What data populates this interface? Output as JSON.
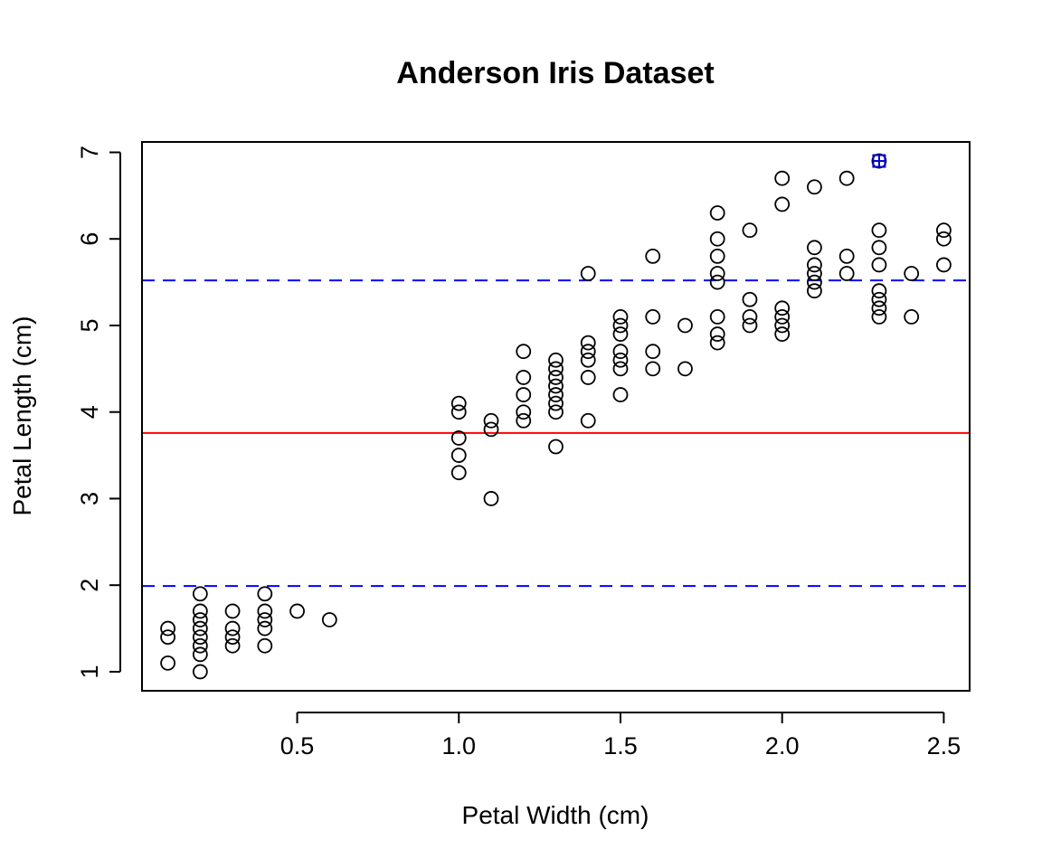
{
  "chart_data": {
    "type": "scatter",
    "title": "Anderson Iris Dataset",
    "xlabel": "Petal Width (cm)",
    "ylabel": "Petal Length (cm)",
    "xlim": [
      0.02,
      2.58
    ],
    "ylim": [
      0.78,
      7.12
    ],
    "x_ticks": [
      0.5,
      1.0,
      1.5,
      2.0,
      2.5
    ],
    "x_tick_labels": [
      "0.5",
      "1.0",
      "1.5",
      "2.0",
      "2.5"
    ],
    "y_ticks": [
      1,
      2,
      3,
      4,
      5,
      6,
      7
    ],
    "y_tick_labels": [
      "1",
      "2",
      "3",
      "4",
      "5",
      "6",
      "7"
    ],
    "grid": false,
    "legend": "none",
    "hlines": [
      {
        "y": 3.758,
        "style": "solid",
        "color": "#ff0000"
      },
      {
        "y": 1.99,
        "style": "dashed",
        "color": "#0000ff"
      },
      {
        "y": 5.52,
        "style": "dashed",
        "color": "#0000ff"
      }
    ],
    "highlight": {
      "x": 2.3,
      "y": 6.9,
      "color": "#0000cc",
      "shape": "square-plus"
    },
    "point_color": "#000000",
    "series": [
      {
        "points": [
          [
            0.1,
            1.5
          ],
          [
            0.1,
            1.4
          ],
          [
            0.1,
            1.1
          ],
          [
            0.2,
            1.9
          ],
          [
            0.2,
            1.7
          ],
          [
            0.2,
            1.6
          ],
          [
            0.2,
            1.5
          ],
          [
            0.2,
            1.4
          ],
          [
            0.2,
            1.3
          ],
          [
            0.2,
            1.2
          ],
          [
            0.2,
            1.0
          ],
          [
            0.3,
            1.7
          ],
          [
            0.3,
            1.5
          ],
          [
            0.3,
            1.4
          ],
          [
            0.3,
            1.3
          ],
          [
            0.4,
            1.9
          ],
          [
            0.4,
            1.7
          ],
          [
            0.4,
            1.6
          ],
          [
            0.4,
            1.5
          ],
          [
            0.4,
            1.3
          ],
          [
            0.5,
            1.7
          ],
          [
            0.6,
            1.6
          ],
          [
            1.0,
            4.1
          ],
          [
            1.0,
            4.0
          ],
          [
            1.0,
            3.7
          ],
          [
            1.0,
            3.5
          ],
          [
            1.0,
            3.3
          ],
          [
            1.1,
            3.9
          ],
          [
            1.1,
            3.8
          ],
          [
            1.1,
            3.0
          ],
          [
            1.2,
            4.7
          ],
          [
            1.2,
            4.4
          ],
          [
            1.2,
            4.2
          ],
          [
            1.2,
            4.0
          ],
          [
            1.2,
            3.9
          ],
          [
            1.3,
            4.6
          ],
          [
            1.3,
            4.5
          ],
          [
            1.3,
            4.4
          ],
          [
            1.3,
            4.3
          ],
          [
            1.3,
            4.2
          ],
          [
            1.3,
            4.1
          ],
          [
            1.3,
            4.0
          ],
          [
            1.3,
            3.6
          ],
          [
            1.4,
            5.6
          ],
          [
            1.4,
            4.8
          ],
          [
            1.4,
            4.7
          ],
          [
            1.4,
            4.6
          ],
          [
            1.4,
            4.4
          ],
          [
            1.4,
            3.9
          ],
          [
            1.5,
            5.1
          ],
          [
            1.5,
            5.0
          ],
          [
            1.5,
            4.9
          ],
          [
            1.5,
            4.7
          ],
          [
            1.5,
            4.6
          ],
          [
            1.5,
            4.5
          ],
          [
            1.5,
            4.2
          ],
          [
            1.6,
            5.8
          ],
          [
            1.6,
            5.1
          ],
          [
            1.6,
            4.7
          ],
          [
            1.6,
            4.5
          ],
          [
            1.7,
            5.0
          ],
          [
            1.7,
            4.5
          ],
          [
            1.8,
            6.3
          ],
          [
            1.8,
            6.0
          ],
          [
            1.8,
            5.8
          ],
          [
            1.8,
            5.6
          ],
          [
            1.8,
            5.5
          ],
          [
            1.8,
            5.1
          ],
          [
            1.8,
            4.9
          ],
          [
            1.8,
            4.8
          ],
          [
            1.9,
            6.1
          ],
          [
            1.9,
            5.3
          ],
          [
            1.9,
            5.1
          ],
          [
            1.9,
            5.0
          ],
          [
            2.0,
            6.7
          ],
          [
            2.0,
            6.4
          ],
          [
            2.0,
            5.2
          ],
          [
            2.0,
            5.1
          ],
          [
            2.0,
            5.0
          ],
          [
            2.0,
            4.9
          ],
          [
            2.1,
            6.6
          ],
          [
            2.1,
            5.9
          ],
          [
            2.1,
            5.7
          ],
          [
            2.1,
            5.6
          ],
          [
            2.1,
            5.5
          ],
          [
            2.1,
            5.4
          ],
          [
            2.2,
            6.7
          ],
          [
            2.2,
            5.8
          ],
          [
            2.2,
            5.6
          ],
          [
            2.3,
            6.9
          ],
          [
            2.3,
            6.1
          ],
          [
            2.3,
            5.9
          ],
          [
            2.3,
            5.7
          ],
          [
            2.3,
            5.4
          ],
          [
            2.3,
            5.3
          ],
          [
            2.3,
            5.2
          ],
          [
            2.3,
            5.1
          ],
          [
            2.4,
            5.6
          ],
          [
            2.4,
            5.1
          ],
          [
            2.5,
            6.1
          ],
          [
            2.5,
            6.0
          ],
          [
            2.5,
            5.7
          ]
        ]
      }
    ]
  }
}
